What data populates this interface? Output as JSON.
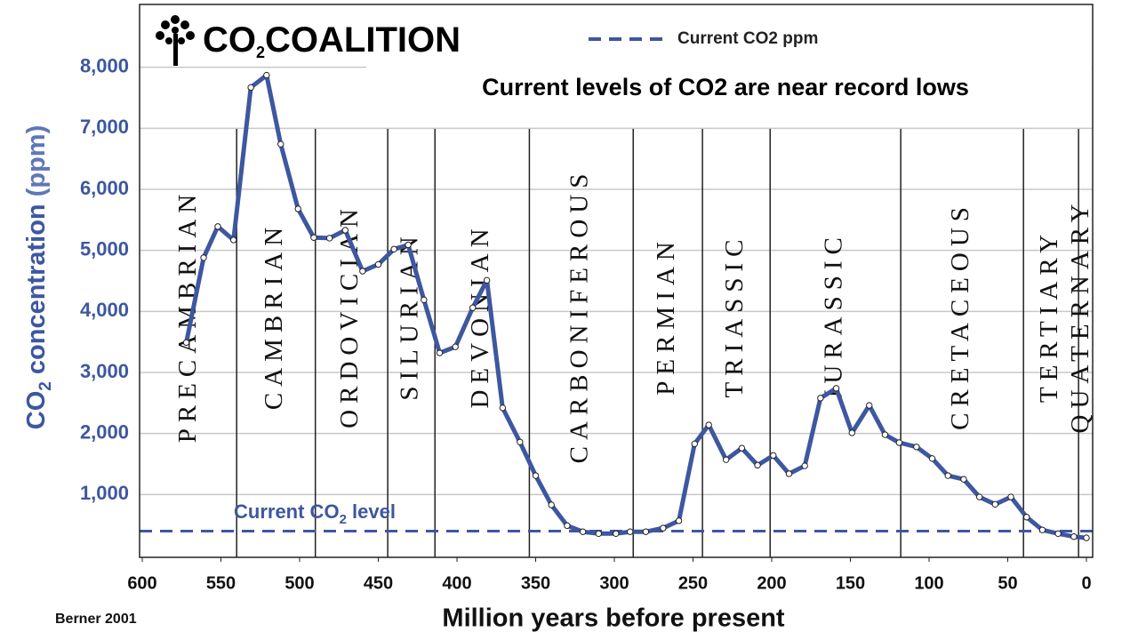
{
  "chart_data": {
    "type": "line",
    "logo": {
      "text": "CO",
      "sub": "2",
      "rest": "COALITION"
    },
    "title": "Current levels of CO2 are near record lows",
    "source": "Berner 2001",
    "xlabel": "Million years before present",
    "ylabel": {
      "text": "CO",
      "sub": "2",
      "rest": " concentration",
      "unit": " (ppm)"
    },
    "xlim": [
      600,
      0
    ],
    "ylim": [
      0,
      9000
    ],
    "xticks": [
      600,
      550,
      500,
      450,
      400,
      350,
      300,
      250,
      200,
      150,
      100,
      50,
      0
    ],
    "yticks": [
      {
        "value": 1000,
        "label": "1,000"
      },
      {
        "value": 2000,
        "label": "2,000"
      },
      {
        "value": 3000,
        "label": "3,000"
      },
      {
        "value": 4000,
        "label": "4,000"
      },
      {
        "value": 5000,
        "label": "5,000"
      },
      {
        "value": 6000,
        "label": "6,000"
      },
      {
        "value": 7000,
        "label": "7,000"
      },
      {
        "value": 8000,
        "label": "8,000"
      }
    ],
    "grid": true,
    "x": [
      572,
      561,
      552,
      542,
      531,
      521,
      512,
      501,
      491,
      481,
      471,
      460,
      450,
      440,
      431,
      421,
      411,
      401,
      390,
      381,
      371,
      360,
      350,
      340,
      330,
      320,
      310,
      299,
      290,
      280,
      269,
      259,
      249,
      240,
      229,
      219,
      209,
      199,
      189,
      179,
      169,
      159,
      149,
      138,
      128,
      119,
      108,
      98,
      88,
      78,
      68,
      58,
      48,
      38,
      28,
      18,
      8,
      0
    ],
    "series": [
      {
        "color": "#3d57a0",
        "values": [
          3490,
          4880,
          5390,
          5170,
          7670,
          7870,
          6740,
          5680,
          5210,
          5200,
          5330,
          4660,
          4770,
          5020,
          5090,
          4190,
          3320,
          3420,
          4060,
          4510,
          2420,
          1860,
          1310,
          830,
          490,
          390,
          360,
          360,
          390,
          390,
          450,
          570,
          1830,
          2140,
          1570,
          1760,
          1480,
          1640,
          1340,
          1470,
          2580,
          2740,
          2010,
          2460,
          1980,
          1850,
          1780,
          1590,
          1310,
          1250,
          960,
          840,
          960,
          630,
          420,
          360,
          310,
          290
        ]
      }
    ],
    "reference_line": {
      "name": "Current CO2 ppm",
      "value": 400,
      "color": "#3d57a0",
      "label": {
        "text": "Current CO",
        "sub": "2",
        "rest": " level"
      }
    },
    "period_boundaries": [
      540,
      490,
      444,
      414,
      354,
      288,
      244,
      201,
      118,
      40,
      5
    ],
    "periods": [
      "PRECAMBRIAN",
      "CAMBRIAN",
      "ORDOVICIAN",
      "SILURIAN",
      "DEVONIAN",
      "CARBONIFEROUS",
      "PERMIAN",
      "TRIASSIC",
      "JURASSIC",
      "CRETACEOUS",
      "TERTIARY",
      "QUATERNARY"
    ]
  }
}
